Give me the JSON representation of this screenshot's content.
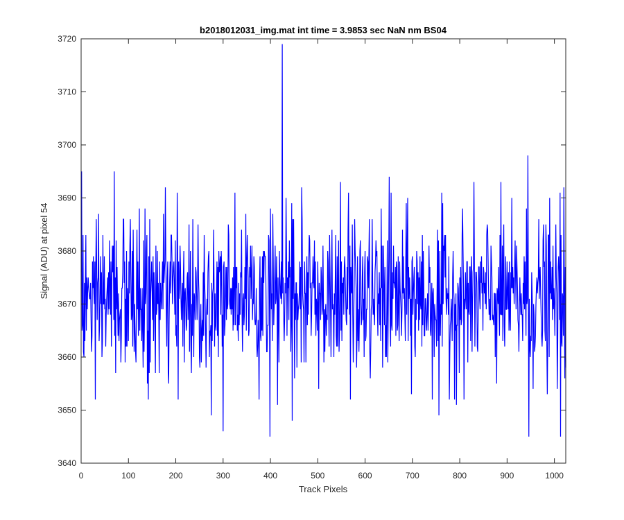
{
  "chart_data": {
    "type": "line",
    "title": "b2018012031_img.mat int time = 3.9853 sec  NaN nm BS04",
    "xlabel": "Track Pixels",
    "ylabel": "Signal (ADU) at pixel 54",
    "xlim": [
      0,
      1024
    ],
    "ylim": [
      3640,
      3720
    ],
    "xticks": [
      0,
      100,
      200,
      300,
      400,
      500,
      600,
      700,
      800,
      900,
      1000
    ],
    "yticks": [
      3640,
      3650,
      3660,
      3670,
      3680,
      3690,
      3700,
      3710,
      3720
    ],
    "grid": false,
    "box": true,
    "line_color": "#0000ff",
    "series": [
      {
        "x_start": 1,
        "x_step": 1,
        "noise_level": 3671,
        "noise_sd": 7.5,
        "notable_points": [
          {
            "x": 1,
            "y": 3695
          },
          {
            "x": 30,
            "y": 3652
          },
          {
            "x": 70,
            "y": 3695
          },
          {
            "x": 142,
            "y": 3652
          },
          {
            "x": 178,
            "y": 3692
          },
          {
            "x": 300,
            "y": 3646
          },
          {
            "x": 399,
            "y": 3645
          },
          {
            "x": 425,
            "y": 3719
          },
          {
            "x": 446,
            "y": 3648
          },
          {
            "x": 651,
            "y": 3694
          },
          {
            "x": 756,
            "y": 3649
          },
          {
            "x": 944,
            "y": 3698
          },
          {
            "x": 946,
            "y": 3645
          },
          {
            "x": 1013,
            "y": 3645
          },
          {
            "x": 1020,
            "y": 3692
          }
        ]
      }
    ]
  }
}
